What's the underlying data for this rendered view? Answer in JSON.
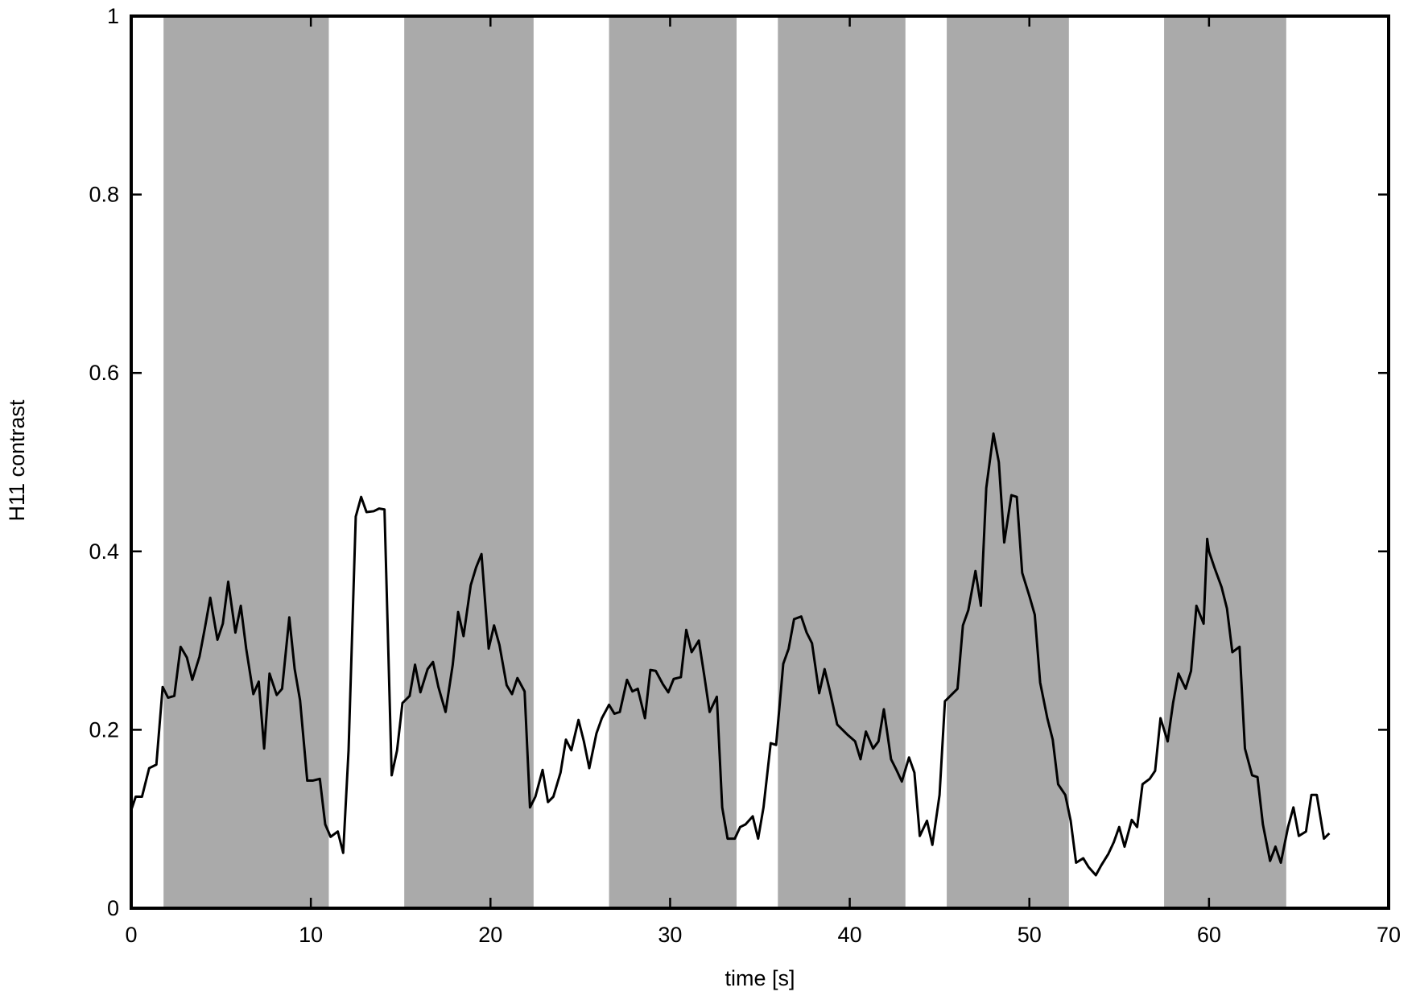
{
  "chart_data": {
    "type": "line",
    "xlabel": "time [s]",
    "ylabel": "H11 contrast",
    "xlim": [
      0,
      70
    ],
    "ylim": [
      0,
      1
    ],
    "xticks": [
      0,
      10,
      20,
      30,
      40,
      50,
      60,
      70
    ],
    "yticks": [
      0,
      0.2,
      0.4,
      0.6,
      0.8,
      1
    ],
    "shaded_intervals": [
      [
        1.8,
        11.0
      ],
      [
        15.2,
        22.4
      ],
      [
        26.6,
        33.7
      ],
      [
        36.0,
        43.1
      ],
      [
        45.4,
        52.2
      ],
      [
        57.5,
        64.3
      ]
    ],
    "shade_color": "#aaaaaa",
    "series": [
      {
        "color": "#000000",
        "x": [
          0,
          0.25,
          0.6,
          1.0,
          1.4,
          1.75,
          2.05,
          2.4,
          2.75,
          3.1,
          3.4,
          3.8,
          4.1,
          4.4,
          4.8,
          5.1,
          5.4,
          5.8,
          6.1,
          6.4,
          6.8,
          7.1,
          7.4,
          7.7,
          8.1,
          8.4,
          8.8,
          9.1,
          9.4,
          9.8,
          10.1,
          10.5,
          10.8,
          11.1,
          11.5,
          11.8,
          12.1,
          12.5,
          12.8,
          13.1,
          13.5,
          13.8,
          14.1,
          14.5,
          14.8,
          15.1,
          15.5,
          15.8,
          16.1,
          16.5,
          16.8,
          17.1,
          17.5,
          17.9,
          18.2,
          18.5,
          18.9,
          19.2,
          19.5,
          19.9,
          20.2,
          20.5,
          20.9,
          21.2,
          21.5,
          21.9,
          22.2,
          22.5,
          22.9,
          23.2,
          23.5,
          23.9,
          24.2,
          24.5,
          24.9,
          25.2,
          25.5,
          25.9,
          26.2,
          26.6,
          26.9,
          27.2,
          27.6,
          27.9,
          28.2,
          28.6,
          28.9,
          29.2,
          29.6,
          29.9,
          30.2,
          30.6,
          30.9,
          31.2,
          31.6,
          31.9,
          32.2,
          32.6,
          32.9,
          33.2,
          33.6,
          33.9,
          34.2,
          34.6,
          34.9,
          35.2,
          35.6,
          35.9,
          36.3,
          36.6,
          36.9,
          37.3,
          37.6,
          37.9,
          38.3,
          38.6,
          38.9,
          39.3,
          39.6,
          39.9,
          40.3,
          40.6,
          40.9,
          41.3,
          41.6,
          41.9,
          42.3,
          42.6,
          42.9,
          43.3,
          43.6,
          43.9,
          44.3,
          44.6,
          45.0,
          45.3,
          45.6,
          46.0,
          46.3,
          46.6,
          47.0,
          47.3,
          47.6,
          48.0,
          48.3,
          48.6,
          49.0,
          49.3,
          49.6,
          50.0,
          50.3,
          50.6,
          51.0,
          51.3,
          51.6,
          52.0,
          52.3,
          52.6,
          53.0,
          53.3,
          53.7,
          54.0,
          54.4,
          54.7,
          55.0,
          55.3,
          55.7,
          56.0,
          56.3,
          56.7,
          57.0,
          57.3,
          57.7,
          58.0,
          58.3,
          58.7,
          59.0,
          59.3,
          59.7,
          59.9,
          60.0,
          60.3,
          60.7,
          61.0,
          61.3,
          61.7,
          62.0,
          62.4,
          62.7,
          63.0,
          63.4,
          63.7,
          64.0,
          64.4,
          64.7,
          65.0,
          65.4,
          65.7,
          66.0,
          66.4,
          66.7
        ],
        "values": [
          0.11,
          0.125,
          0.125,
          0.157,
          0.161,
          0.248,
          0.236,
          0.238,
          0.293,
          0.281,
          0.256,
          0.282,
          0.314,
          0.348,
          0.301,
          0.319,
          0.366,
          0.309,
          0.339,
          0.291,
          0.24,
          0.254,
          0.179,
          0.263,
          0.239,
          0.246,
          0.326,
          0.268,
          0.233,
          0.143,
          0.143,
          0.145,
          0.094,
          0.08,
          0.086,
          0.062,
          0.177,
          0.439,
          0.461,
          0.444,
          0.445,
          0.448,
          0.447,
          0.149,
          0.177,
          0.23,
          0.238,
          0.273,
          0.242,
          0.268,
          0.276,
          0.248,
          0.22,
          0.273,
          0.332,
          0.305,
          0.362,
          0.382,
          0.397,
          0.291,
          0.317,
          0.295,
          0.25,
          0.24,
          0.258,
          0.243,
          0.113,
          0.125,
          0.155,
          0.119,
          0.125,
          0.152,
          0.189,
          0.177,
          0.211,
          0.187,
          0.157,
          0.196,
          0.213,
          0.228,
          0.218,
          0.22,
          0.256,
          0.243,
          0.246,
          0.213,
          0.267,
          0.266,
          0.251,
          0.242,
          0.257,
          0.259,
          0.312,
          0.287,
          0.3,
          0.261,
          0.22,
          0.237,
          0.113,
          0.078,
          0.078,
          0.091,
          0.094,
          0.103,
          0.078,
          0.113,
          0.185,
          0.183,
          0.274,
          0.291,
          0.324,
          0.327,
          0.309,
          0.297,
          0.241,
          0.268,
          0.243,
          0.206,
          0.2,
          0.194,
          0.187,
          0.167,
          0.198,
          0.179,
          0.187,
          0.223,
          0.167,
          0.155,
          0.142,
          0.169,
          0.152,
          0.081,
          0.098,
          0.071,
          0.127,
          0.232,
          0.238,
          0.246,
          0.317,
          0.334,
          0.378,
          0.339,
          0.471,
          0.532,
          0.5,
          0.41,
          0.463,
          0.461,
          0.376,
          0.35,
          0.329,
          0.253,
          0.213,
          0.189,
          0.139,
          0.127,
          0.098,
          0.051,
          0.056,
          0.046,
          0.037,
          0.048,
          0.061,
          0.074,
          0.091,
          0.069,
          0.099,
          0.091,
          0.139,
          0.145,
          0.154,
          0.213,
          0.187,
          0.23,
          0.263,
          0.246,
          0.266,
          0.339,
          0.319,
          0.414,
          0.4,
          0.382,
          0.36,
          0.336,
          0.287,
          0.293,
          0.179,
          0.149,
          0.147,
          0.094,
          0.053,
          0.069,
          0.051,
          0.091,
          0.113,
          0.081,
          0.086,
          0.127,
          0.127,
          0.078,
          0.084
        ]
      }
    ]
  }
}
